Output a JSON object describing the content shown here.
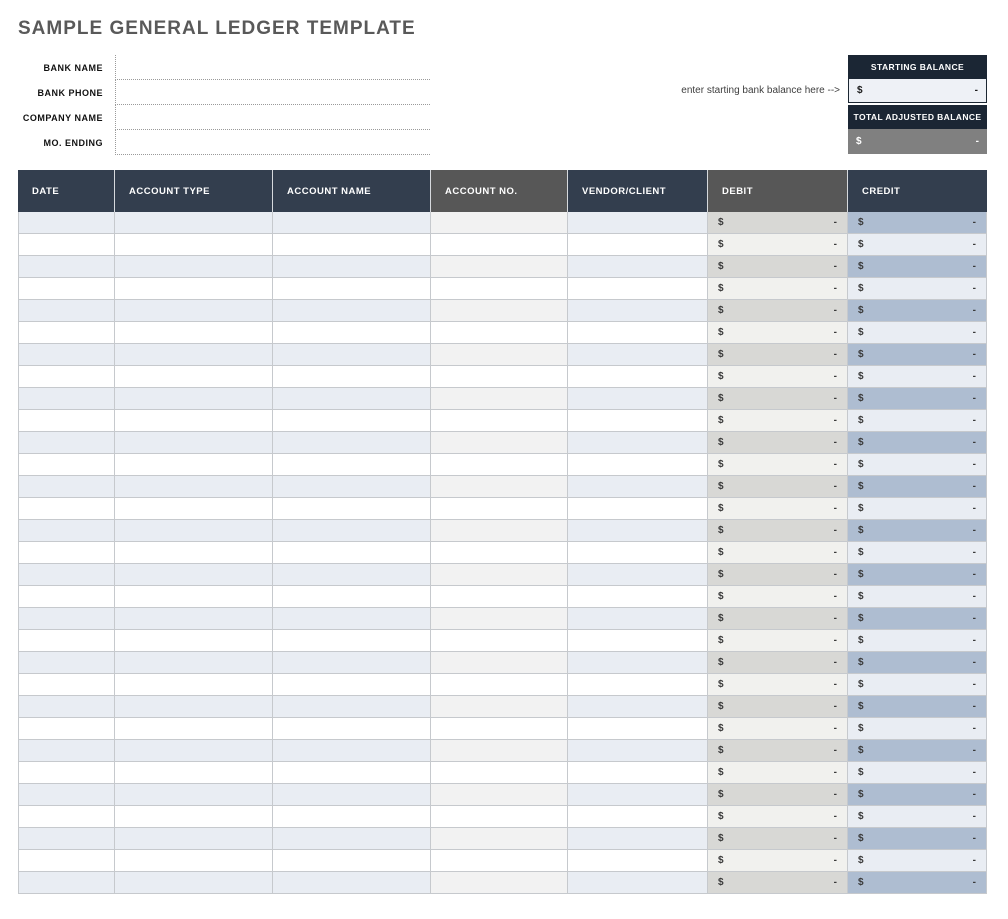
{
  "page_title": "SAMPLE GENERAL LEDGER TEMPLATE",
  "form": {
    "fields": [
      {
        "label": "BANK NAME",
        "value": ""
      },
      {
        "label": "BANK PHONE",
        "value": ""
      },
      {
        "label": "COMPANY NAME",
        "value": ""
      },
      {
        "label": "MO. ENDING",
        "value": ""
      }
    ]
  },
  "balance_panel": {
    "hint": "enter starting bank balance here -->",
    "starting_balance": {
      "label": "STARTING BALANCE",
      "currency": "$",
      "value": "-"
    },
    "total_adjusted_balance": {
      "label": "TOTAL ADJUSTED BALANCE",
      "currency": "$",
      "value": "-"
    }
  },
  "ledger_table": {
    "columns": [
      {
        "label": "DATE",
        "type": "text",
        "header_color": "#333e4e"
      },
      {
        "label": "ACCOUNT TYPE",
        "type": "text",
        "header_color": "#333e4e"
      },
      {
        "label": "ACCOUNT NAME",
        "type": "text",
        "header_color": "#333e4e"
      },
      {
        "label": "ACCOUNT NO.",
        "type": "text",
        "header_color": "#575757"
      },
      {
        "label": "VENDOR/CLIENT",
        "type": "text",
        "header_color": "#333e4e"
      },
      {
        "label": "DEBIT",
        "type": "currency",
        "header_color": "#575757"
      },
      {
        "label": "CREDIT",
        "type": "currency",
        "header_color": "#333e4e"
      }
    ],
    "row_count": 31,
    "empty_currency_cell": {
      "currency": "$",
      "value": "-"
    }
  },
  "colors": {
    "title_text": "#595959",
    "table_header_navy": "#333e4e",
    "table_header_gray": "#575757",
    "balance_header_navy": "#1b2634",
    "starting_value_bg": "#eef1f6",
    "total_value_bg": "#808080",
    "row_shading": {
      "odd": [
        "#e9edf3",
        "#e9edf3",
        "#e9edf3",
        "#f2f2f2",
        "#e9edf3",
        "#d8d8d5",
        "#aebdd1"
      ],
      "even": [
        "#ffffff",
        "#ffffff",
        "#ffffff",
        "#ffffff",
        "#ffffff",
        "#f1f1ee",
        "#e9edf3"
      ]
    }
  }
}
